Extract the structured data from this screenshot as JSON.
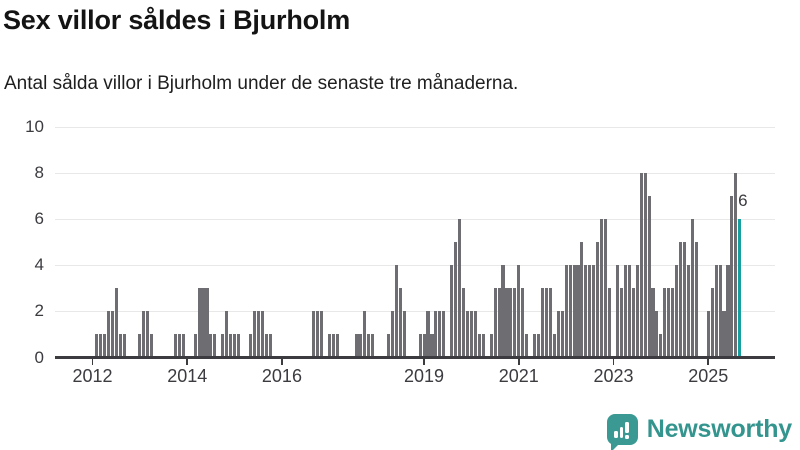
{
  "header": {
    "title": "Sex villor såldes i Bjurholm",
    "subtitle": "Antal sålda villor i Bjurholm under de senaste tre månaderna."
  },
  "chart_data": {
    "type": "bar",
    "title": "Sex villor såldes i Bjurholm",
    "subtitle": "Antal sålda villor i Bjurholm under de senaste tre månaderna.",
    "series_name": "Antal sålda villor",
    "y_axis": {
      "ticks": [
        0,
        2,
        4,
        6,
        8,
        10
      ],
      "max": 10,
      "grid": true
    },
    "x_axis": {
      "domain_start": "2011-04",
      "ticks": [
        {
          "month": "2012-01",
          "label": "2012"
        },
        {
          "month": "2014-01",
          "label": "2014"
        },
        {
          "month": "2016-01",
          "label": "2016"
        },
        {
          "month": "2019-01",
          "label": "2019"
        },
        {
          "month": "2021-01",
          "label": "2021"
        },
        {
          "month": "2023-01",
          "label": "2023"
        },
        {
          "month": "2025-01",
          "label": "2025"
        }
      ]
    },
    "series_start_month": "2012-01",
    "monthly_values_by_year": [
      {
        "year": 2012,
        "values": [
          0,
          1,
          1,
          1,
          2,
          2,
          3,
          1,
          1,
          0,
          0,
          0
        ]
      },
      {
        "year": 2013,
        "values": [
          1,
          2,
          2,
          1,
          0,
          0,
          0,
          0,
          0,
          1,
          1,
          1
        ]
      },
      {
        "year": 2014,
        "values": [
          0,
          0,
          1,
          3,
          3,
          3,
          1,
          1,
          0,
          1,
          2,
          1
        ]
      },
      {
        "year": 2015,
        "values": [
          1,
          1,
          0,
          0,
          1,
          2,
          2,
          2,
          1,
          1,
          0,
          0
        ]
      },
      {
        "year": 2016,
        "values": [
          0,
          0,
          0,
          0,
          0,
          0,
          0,
          0,
          2,
          2,
          2,
          0
        ]
      },
      {
        "year": 2017,
        "values": [
          1,
          1,
          1,
          0,
          0,
          0,
          0,
          1,
          1,
          2,
          1,
          1
        ]
      },
      {
        "year": 2018,
        "values": [
          0,
          0,
          0,
          1,
          2,
          4,
          3,
          2,
          0,
          0,
          0,
          1
        ]
      },
      {
        "year": 2019,
        "values": [
          1,
          2,
          1,
          2,
          2,
          2,
          0,
          4,
          5,
          6,
          3,
          2
        ]
      },
      {
        "year": 2020,
        "values": [
          2,
          2,
          1,
          1,
          0,
          1,
          3,
          3,
          4,
          3,
          3,
          3
        ]
      },
      {
        "year": 2021,
        "values": [
          4,
          3,
          1,
          0,
          1,
          1,
          3,
          3,
          3,
          1,
          2,
          2
        ]
      },
      {
        "year": 2022,
        "values": [
          4,
          4,
          4,
          4,
          5,
          4,
          4,
          4,
          5,
          6,
          6,
          3
        ]
      },
      {
        "year": 2023,
        "values": [
          0,
          4,
          3,
          4,
          4,
          3,
          4,
          8,
          8,
          7,
          3,
          2
        ]
      },
      {
        "year": 2024,
        "values": [
          1,
          3,
          3,
          3,
          4,
          5,
          5,
          4,
          6,
          5,
          0,
          0
        ]
      },
      {
        "year": 2025,
        "values": [
          2,
          3,
          4,
          4,
          2,
          4,
          7,
          8,
          6
        ]
      }
    ],
    "highlight": {
      "month": "2025-09",
      "value": 6,
      "label": "6"
    },
    "colors": {
      "bar": "#6e6e72",
      "highlight": "#179e9e",
      "grid": "#e8e8e8",
      "axis": "#3b3b40"
    }
  },
  "footer": {
    "brand": "Newsworthy",
    "brand_color": "#34948e",
    "icon": "speech-bubble-bar-chart-icon"
  }
}
